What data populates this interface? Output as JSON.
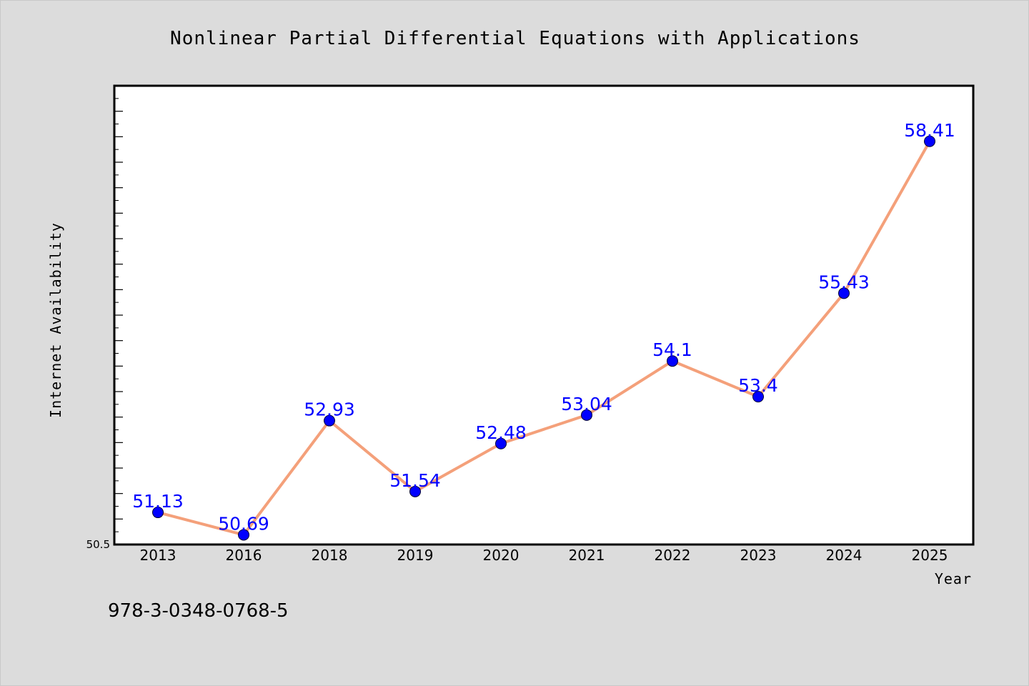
{
  "colors": {
    "background": "#dcdcdc",
    "plot_background": "#ffffff",
    "line": "#f4a07a",
    "marker": "#0000ff",
    "data_label": "#0000ff",
    "axes": "#000000"
  },
  "footer": {
    "isbn": "978-3-0348-0768-5"
  },
  "chart_data": {
    "type": "line",
    "title": "Nonlinear Partial Differential Equations with Applications",
    "xlabel": "Year",
    "ylabel": "Internet Availability",
    "categories": [
      "2013",
      "2016",
      "2018",
      "2019",
      "2020",
      "2021",
      "2022",
      "2023",
      "2024",
      "2025"
    ],
    "values": [
      51.13,
      50.69,
      52.93,
      51.54,
      52.48,
      53.04,
      54.1,
      53.4,
      55.43,
      58.41
    ],
    "data_labels": [
      "51.13",
      "50.69",
      "52.93",
      "51.54",
      "52.48",
      "53.04",
      "54.1",
      "53.4",
      "55.43",
      "58.41"
    ],
    "ylim": [
      50.5,
      59.5
    ],
    "y_min_label": "50.5",
    "y_ticks": [
      50.5,
      51.0,
      51.5,
      52.0,
      52.5,
      53.0,
      53.5,
      54.0,
      54.5,
      55.0,
      55.5,
      56.0,
      56.5,
      57.0,
      57.5,
      58.0,
      58.5,
      59.0
    ],
    "y_minor_ticks": [
      50.75,
      51.25,
      51.75,
      52.25,
      52.75,
      53.25,
      53.75,
      54.25,
      54.75,
      55.25,
      55.75,
      56.25,
      56.75,
      57.25,
      57.75,
      58.25,
      58.75,
      59.25
    ],
    "grid": false,
    "legend": "none"
  }
}
